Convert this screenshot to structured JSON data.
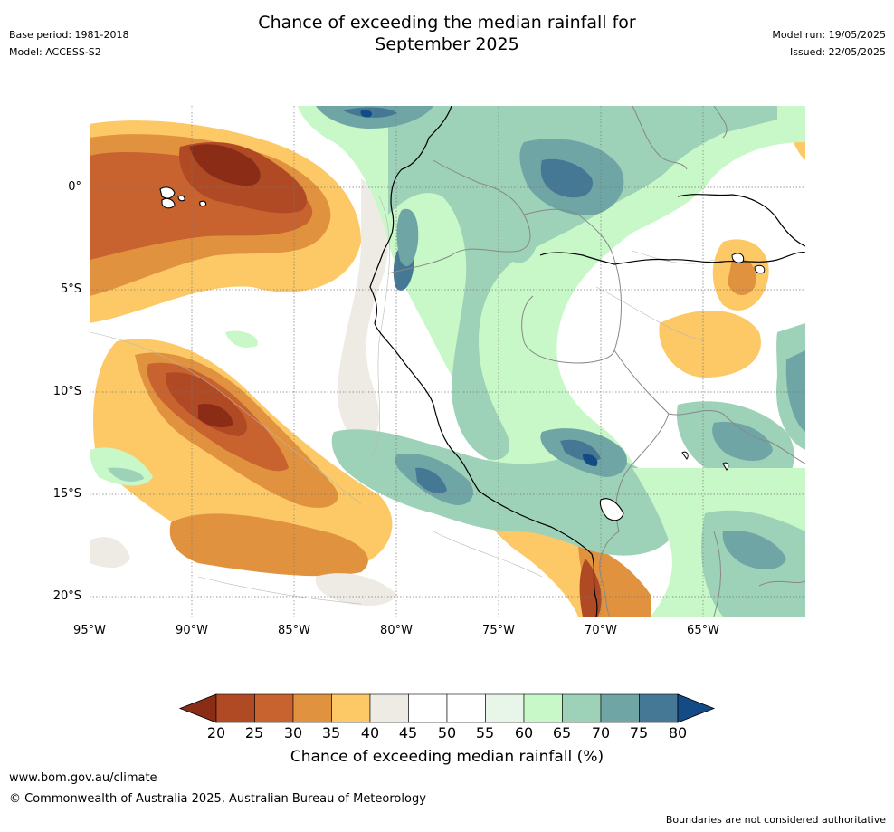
{
  "title": "Chance of exceeding the median rainfall for\nSeptember 2025",
  "title_line1": "Chance of exceeding the median rainfall for",
  "title_line2": "September 2025",
  "header_left": {
    "base_period": "Base period: 1981-2018",
    "model": "Model: ACCESS-S2"
  },
  "header_right": {
    "model_run": "Model run: 19/05/2025",
    "issued": "Issued: 22/05/2025"
  },
  "lat_labels": [
    "0°",
    "5°S",
    "10°S",
    "15°S",
    "20°S"
  ],
  "lon_labels": [
    "95°W",
    "90°W",
    "85°W",
    "80°W",
    "75°W",
    "70°W",
    "65°W"
  ],
  "colorbar": {
    "ticks": [
      "20",
      "25",
      "30",
      "35",
      "40",
      "45",
      "50",
      "55",
      "60",
      "65",
      "70",
      "75",
      "80"
    ],
    "label": "Chance of exceeding median rainfall (%)",
    "colors": {
      "lt20": "#8b2d16",
      "20-25": "#b04a24",
      "25-30": "#c8622e",
      "30-35": "#e0923f",
      "35-40": "#fdc866",
      "40-45": "#eeebe5",
      "45-50": "#ffffff",
      "50-55": "#ffffff",
      "55-60": "#e8f5e9",
      "60-65": "#c8f7c8",
      "65-70": "#9dd1b8",
      "70-75": "#6fa5a5",
      "75-80": "#447894",
      "gt80": "#124b85"
    }
  },
  "footer": {
    "url": "www.bom.gov.au/climate",
    "copyright": "© Commonwealth of Australia 2025, Australian Bureau of Meteorology",
    "disclaimer": "Boundaries are not considered authoritative"
  }
}
